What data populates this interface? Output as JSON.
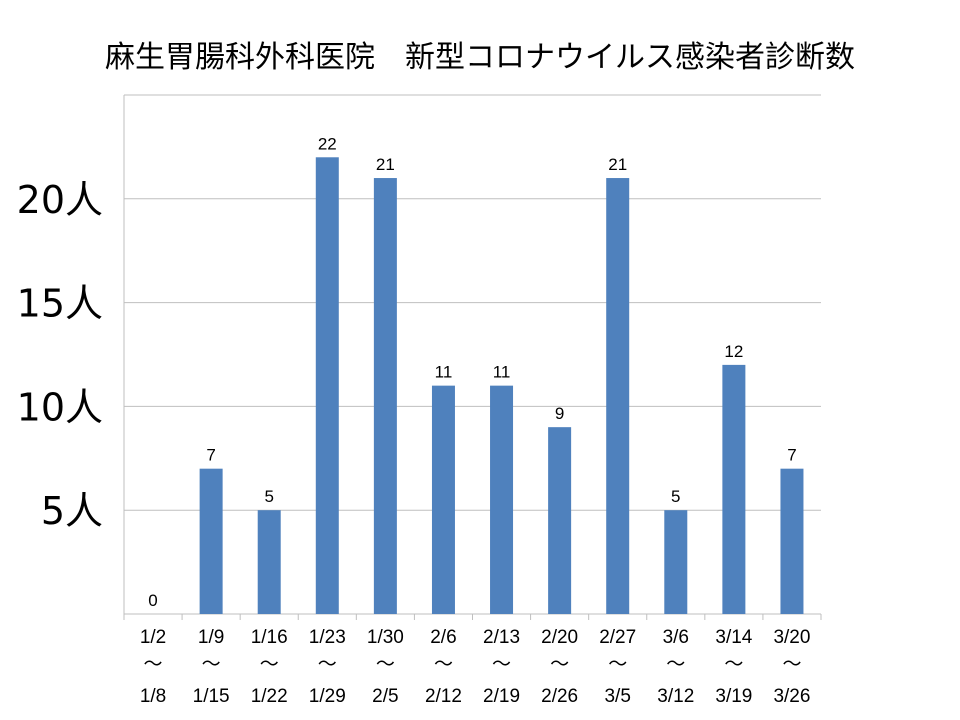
{
  "chart_data": {
    "type": "bar",
    "title": "麻生胃腸科外科医院　新型コロナウイルス感染者診断数",
    "categories": [
      [
        "1/2",
        "～",
        "1/8"
      ],
      [
        "1/9",
        "～",
        "1/15"
      ],
      [
        "1/16",
        "～",
        "1/22"
      ],
      [
        "1/23",
        "～",
        "1/29"
      ],
      [
        "1/30",
        "～",
        "2/5"
      ],
      [
        "2/6",
        "～",
        "2/12"
      ],
      [
        "2/13",
        "～",
        "2/19"
      ],
      [
        "2/20",
        "～",
        "2/26"
      ],
      [
        "2/27",
        "～",
        "3/5"
      ],
      [
        "3/6",
        "～",
        "3/12"
      ],
      [
        "3/14",
        "～",
        "3/19"
      ],
      [
        "3/20",
        "～",
        "3/26"
      ]
    ],
    "values": [
      0,
      7,
      5,
      22,
      21,
      11,
      11,
      9,
      21,
      5,
      12,
      7
    ],
    "data_labels": [
      "0",
      "7",
      "5",
      "22",
      "21",
      "11",
      "11",
      "9",
      "21",
      "5",
      "12",
      "7"
    ],
    "yticks": [
      {
        "value": 5,
        "label": "5人"
      },
      {
        "value": 10,
        "label": "10人"
      },
      {
        "value": 15,
        "label": "15人"
      },
      {
        "value": 20,
        "label": "20人"
      }
    ],
    "ylim": [
      0,
      25
    ],
    "grid": true,
    "bar_color": "#4F81BD",
    "grid_color": "#BFBFBF",
    "xlabel": "",
    "ylabel": ""
  }
}
